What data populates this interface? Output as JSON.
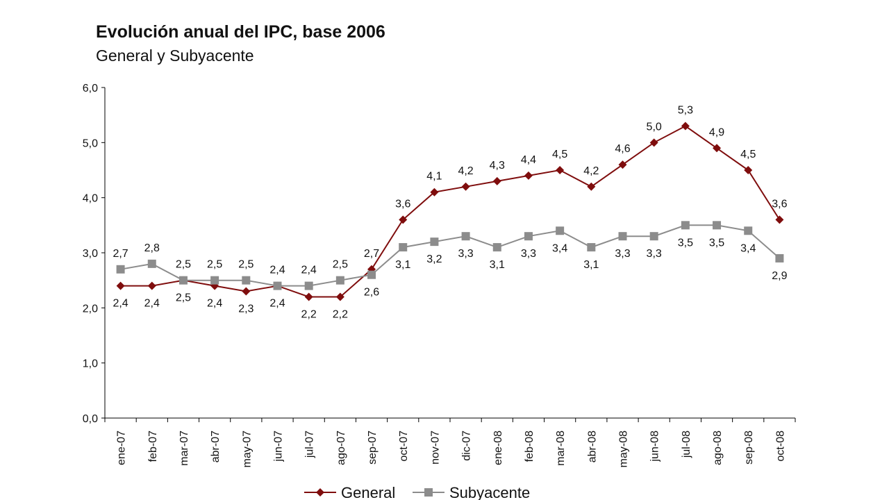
{
  "chart_data": {
    "type": "line",
    "title": "Evolución anual del IPC, base 2006",
    "subtitle": "General y Subyacente",
    "xlabel": "",
    "ylabel": "",
    "ylim": [
      0,
      6
    ],
    "y_ticks": [
      "0,0",
      "1,0",
      "2,0",
      "3,0",
      "4,0",
      "5,0",
      "6,0"
    ],
    "grid": false,
    "legend_position": "bottom",
    "categories": [
      "ene-07",
      "feb-07",
      "mar-07",
      "abr-07",
      "may-07",
      "jun-07",
      "jul-07",
      "ago-07",
      "sep-07",
      "oct-07",
      "nov-07",
      "dic-07",
      "ene-08",
      "feb-08",
      "mar-08",
      "abr-08",
      "may-08",
      "jun-08",
      "jul-08",
      "ago-08",
      "sep-08",
      "oct-08"
    ],
    "series": [
      {
        "name": "General",
        "color": "#7f0d0d",
        "marker": "diamond",
        "values": [
          2.4,
          2.4,
          2.5,
          2.4,
          2.3,
          2.4,
          2.2,
          2.2,
          2.7,
          3.6,
          4.1,
          4.2,
          4.3,
          4.4,
          4.5,
          4.2,
          4.6,
          5.0,
          5.3,
          4.9,
          4.5,
          3.6
        ],
        "labels": [
          "2,4",
          "2,4",
          "2,5",
          "2,4",
          "2,3",
          "2,4",
          "2,2",
          "2,2",
          "2,7",
          "3,6",
          "4,1",
          "4,2",
          "4,3",
          "4,4",
          "4,5",
          "4,2",
          "4,6",
          "5,0",
          "5,3",
          "4,9",
          "4,5",
          "3,6"
        ]
      },
      {
        "name": "Subyacente",
        "color": "#8c8c8c",
        "marker": "square",
        "values": [
          2.7,
          2.8,
          2.5,
          2.5,
          2.5,
          2.4,
          2.4,
          2.5,
          2.6,
          3.1,
          3.2,
          3.3,
          3.1,
          3.3,
          3.4,
          3.1,
          3.3,
          3.3,
          3.5,
          3.5,
          3.4,
          2.9
        ],
        "labels": [
          "2,7",
          "2,8",
          "2,5",
          "2,5",
          "2,5",
          "2,4",
          "2,4",
          "2,5",
          "2,6",
          "3,1",
          "3,2",
          "3,3",
          "3,1",
          "3,3",
          "3,4",
          "3,1",
          "3,3",
          "3,3",
          "3,5",
          "3,5",
          "3,4",
          "2,9"
        ]
      }
    ]
  }
}
